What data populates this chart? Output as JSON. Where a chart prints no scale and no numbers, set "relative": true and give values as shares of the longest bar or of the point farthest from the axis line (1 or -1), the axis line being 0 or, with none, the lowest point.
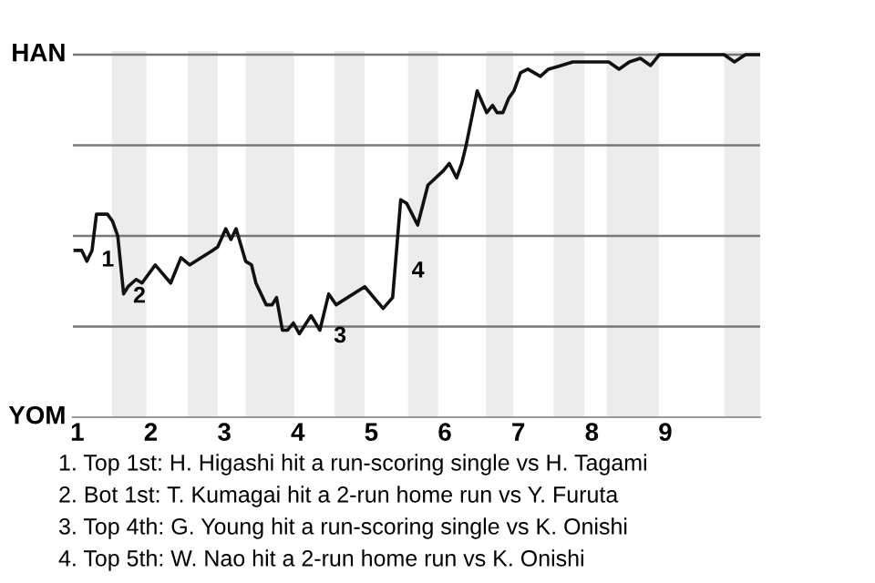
{
  "chart_data": {
    "type": "line",
    "color": "#111111",
    "relative": true,
    "x": [
      0.97,
      1.06,
      1.13,
      1.2,
      1.26,
      1.41,
      1.48,
      1.55,
      1.63,
      1.69,
      1.8,
      1.88,
      2.06,
      2.27,
      2.41,
      2.53,
      2.84,
      2.91,
      3.02,
      3.09,
      3.16,
      3.29,
      3.37,
      3.43,
      3.57,
      3.65,
      3.71,
      3.79,
      3.86,
      3.94,
      4.02,
      4.18,
      4.3,
      4.42,
      4.52,
      4.91,
      5.16,
      5.29,
      5.4,
      5.48,
      5.63,
      5.77,
      5.98,
      6.06,
      6.16,
      6.23,
      6.29,
      6.44,
      6.57,
      6.65,
      6.71,
      6.79,
      6.87,
      6.94,
      7.03,
      7.13,
      7.3,
      7.41,
      7.58,
      7.74,
      7.95,
      8.23,
      8.37,
      8.51,
      8.66,
      8.8,
      8.92,
      9.8,
      9.94,
      10.09,
      10.28
    ],
    "values": [
      0.46,
      0.46,
      0.43,
      0.46,
      0.56,
      0.56,
      0.54,
      0.5,
      0.34,
      0.36,
      0.38,
      0.37,
      0.42,
      0.37,
      0.44,
      0.42,
      0.46,
      0.47,
      0.52,
      0.49,
      0.52,
      0.43,
      0.42,
      0.37,
      0.31,
      0.31,
      0.33,
      0.24,
      0.24,
      0.26,
      0.23,
      0.28,
      0.24,
      0.34,
      0.31,
      0.36,
      0.3,
      0.33,
      0.6,
      0.59,
      0.53,
      0.64,
      0.68,
      0.7,
      0.66,
      0.7,
      0.75,
      0.9,
      0.84,
      0.86,
      0.84,
      0.84,
      0.88,
      0.9,
      0.95,
      0.96,
      0.94,
      0.96,
      0.97,
      0.98,
      0.98,
      0.98,
      0.96,
      0.98,
      0.99,
      0.97,
      1,
      1,
      0.98,
      1,
      1
    ],
    "xlim": [
      0.94,
      10.29
    ],
    "xticks": [
      1,
      2,
      3,
      4,
      5,
      6,
      7,
      8,
      9
    ],
    "marker": "none",
    "line_style": "solid",
    "legend": false,
    "ref_lines": [
      {
        "axis": "y",
        "value": 1,
        "label": "HAN",
        "color": "#777777"
      },
      {
        "axis": "y",
        "value": 0.75,
        "color": "#777777"
      },
      {
        "axis": "y",
        "value": 0.5,
        "color": "#777777"
      },
      {
        "axis": "y",
        "value": 0.25,
        "color": "#777777"
      }
    ],
    "bands": [
      {
        "axis": "x",
        "from": 1.47,
        "to": 1.94,
        "color": "#ececec"
      },
      {
        "axis": "x",
        "from": 2.5,
        "to": 2.91,
        "color": "#ececec"
      },
      {
        "axis": "x",
        "from": 3.29,
        "to": 3.95,
        "color": "#ececec"
      },
      {
        "axis": "x",
        "from": 4.5,
        "to": 4.91,
        "color": "#ececec"
      },
      {
        "axis": "x",
        "from": 5.5,
        "to": 5.91,
        "color": "#ececec"
      },
      {
        "axis": "x",
        "from": 6.56,
        "to": 6.93,
        "color": "#ececec"
      },
      {
        "axis": "x",
        "from": 7.48,
        "to": 7.9,
        "color": "#ececec"
      },
      {
        "axis": "x",
        "from": 8.2,
        "to": 8.91,
        "color": "#ececec"
      },
      {
        "axis": "x",
        "from": 9.8,
        "to": 10.29,
        "color": "#ececec"
      }
    ],
    "annotations": [
      {
        "text": "1",
        "x": 1.26,
        "y": 0.46
      },
      {
        "text": "2",
        "x": 1.69,
        "y": 0.36
      },
      {
        "text": "3",
        "x": 4.42,
        "y": 0.25
      },
      {
        "text": "4",
        "x": 5.48,
        "y": 0.43
      },
      "YOM",
      "1. Top 1st: H. Higashi hit a run-scoring single vs H. Tagami",
      "2. Bot 1st: T. Kumagai hit a 2-run home run vs Y. Furuta",
      "3. Top 4th: G. Young hit a run-scoring single vs K. Onishi",
      "4. Top 5th: W. Nao hit a 2-run home run vs K. Onishi"
    ]
  }
}
